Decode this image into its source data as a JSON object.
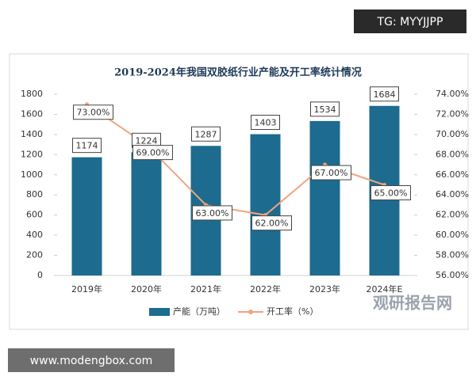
{
  "chart_data": {
    "type": "bar-line",
    "title": "2019-2024年我国双胶纸行业产能及开工率统计情况",
    "categories": [
      "2019年",
      "2020年",
      "2021年",
      "2022年",
      "2023年",
      "2024年E"
    ],
    "series": [
      {
        "name": "产能（万吨）",
        "color": "#1d6b8f",
        "type": "bar",
        "values": [
          1174,
          1224,
          1287,
          1403,
          1534,
          1684
        ]
      },
      {
        "name": "开工率（%）",
        "color": "#f0a47e",
        "type": "line",
        "axis": "y2",
        "values": [
          73,
          69,
          63,
          62,
          67,
          65
        ],
        "value_labels": [
          "73.00%",
          "69.00%",
          "63.00%",
          "62.00%",
          "67.00%",
          "65.00%"
        ]
      }
    ],
    "ylim": [
      0,
      1800
    ],
    "yticks": [
      0,
      200,
      400,
      600,
      800,
      1000,
      1200,
      1400,
      1600,
      1800
    ],
    "y2lim": [
      56,
      74
    ],
    "y2ticks": [
      {
        "value": 56,
        "label": "56.00%"
      },
      {
        "value": 58,
        "label": "58.00%"
      },
      {
        "value": 60,
        "label": "60.00%"
      },
      {
        "value": 62,
        "label": "62.00%"
      },
      {
        "value": 64,
        "label": "64.00%"
      },
      {
        "value": 66,
        "label": "66.00%"
      },
      {
        "value": 68,
        "label": "68.00%"
      },
      {
        "value": 70,
        "label": "70.00%"
      },
      {
        "value": 72,
        "label": "72.00%"
      },
      {
        "value": 74,
        "label": "74.00%"
      }
    ],
    "grid": false,
    "legend": "bottom"
  },
  "watermarks": {
    "top": "TG: MYYJJPP",
    "bottom": "www.modengbox.com",
    "logo": "观研报告网"
  }
}
